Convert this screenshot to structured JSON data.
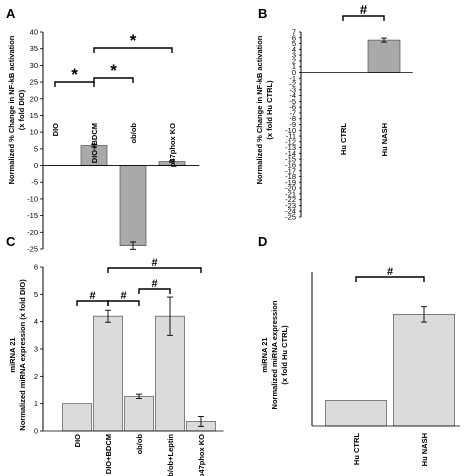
{
  "chart_data": [
    {
      "panel": "A",
      "type": "bar",
      "categories": [
        "DIO",
        "DIO+BDCM",
        "ob/ob",
        "p47phox KO"
      ],
      "values": [
        0,
        6,
        -24,
        1.2
      ],
      "errors": [
        0,
        0.4,
        1.1,
        0.2
      ],
      "ylabel_lines": [
        "Normalized % Change in NF-kB activation",
        "(x fold DIO)"
      ],
      "ylim": [
        -25,
        40
      ],
      "yticks": [
        -25,
        -20,
        -15,
        -10,
        -5,
        0,
        5,
        10,
        15,
        20,
        25,
        30,
        35,
        40
      ],
      "bar_color": "#a7aaa6",
      "significance": [
        {
          "from": 0,
          "to": 1,
          "label": "*"
        },
        {
          "from": 1,
          "to": 2,
          "label": "*"
        },
        {
          "from": 1,
          "to": 3,
          "label": "*"
        }
      ]
    },
    {
      "panel": "B",
      "type": "bar",
      "categories": [
        "Hu CTRL",
        "Hu NASH"
      ],
      "values": [
        0,
        5.6
      ],
      "errors": [
        0,
        0.35
      ],
      "ylabel_lines": [
        "Normalized % Change in NF-kB activation",
        "(x fold Hu CTRL)"
      ],
      "ylim": [
        -25,
        7
      ],
      "yticks": [
        -25,
        -24,
        -23,
        -22,
        -21,
        -20,
        -19,
        -18,
        -17,
        -16,
        -15,
        -14,
        -13,
        -12,
        -11,
        -10,
        -9,
        -8,
        -7,
        -6,
        -5,
        -4,
        -3,
        -2,
        -1,
        0,
        1,
        2,
        3,
        4,
        5,
        6,
        7
      ],
      "bar_color": "#a7aaa6",
      "significance": [
        {
          "from": 0,
          "to": 1,
          "label": "#"
        }
      ]
    },
    {
      "panel": "C",
      "type": "bar",
      "categories": [
        "DIO",
        "DIO+BDCM",
        "ob/ob",
        "ob/ob+Leptin",
        "p47phox KO"
      ],
      "values": [
        1.0,
        4.2,
        1.27,
        4.2,
        0.35
      ],
      "errors": [
        0,
        0.22,
        0.08,
        0.7,
        0.18
      ],
      "ylabel_lines": [
        "miRNA 21",
        "Normalized miRNA expression (x fold DIO)"
      ],
      "ylim": [
        0,
        6
      ],
      "yticks": [
        0,
        1,
        2,
        3,
        4,
        5,
        6
      ],
      "bar_color": "#d9dcd8",
      "significance": [
        {
          "from": 0,
          "to": 1,
          "label": "#"
        },
        {
          "from": 1,
          "to": 2,
          "label": "#"
        },
        {
          "from": 2,
          "to": 3,
          "label": "#"
        },
        {
          "from": 1,
          "to": 4,
          "label": "#"
        }
      ]
    },
    {
      "panel": "D",
      "type": "bar",
      "categories": [
        "Hu CTRL",
        "Hu NASH"
      ],
      "values": [
        1.0,
        4.35
      ],
      "errors": [
        0,
        0.3
      ],
      "ylabel_lines": [
        "miRNA 21",
        "Normalized miRNA expression",
        "(x fold Hu CTRL)"
      ],
      "ylim": [
        0,
        6
      ],
      "yticks": [],
      "bar_color": "#d9dcd8",
      "significance": [
        {
          "from": 0,
          "to": 1,
          "label": "#"
        }
      ]
    }
  ]
}
